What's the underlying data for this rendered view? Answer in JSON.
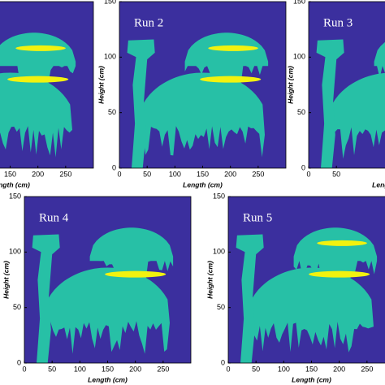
{
  "chart_data": [
    {
      "type": "image",
      "xlabel": "Length (cm)",
      "xlim": [
        0,
        300
      ],
      "ylim": [
        0,
        150
      ],
      "xticks": [
        150,
        200,
        250
      ]
    },
    {
      "type": "image",
      "title": "Run 2",
      "xlabel": "Length (cm)",
      "ylabel": "Height (cm)",
      "xlim": [
        0,
        300
      ],
      "ylim": [
        0,
        150
      ],
      "xticks": [
        0,
        50,
        100,
        150,
        200,
        250
      ],
      "yticks": [
        0,
        50,
        100,
        150
      ]
    },
    {
      "type": "image",
      "title": "Run 3",
      "xlabel": "Length (cm)",
      "ylabel": "Height (cm)",
      "xlim": [
        0,
        300
      ],
      "ylim": [
        0,
        150
      ],
      "xticks": [
        0,
        50
      ],
      "yticks": [
        0,
        50,
        100,
        150
      ]
    },
    {
      "type": "image",
      "title": "Run 4",
      "xlabel": "Length (cm)",
      "ylabel": "Height (cm)",
      "xlim": [
        0,
        300
      ],
      "ylim": [
        0,
        150
      ],
      "xticks": [
        0,
        50,
        100,
        150,
        200,
        250
      ],
      "yticks": [
        0,
        50,
        100,
        150
      ]
    },
    {
      "type": "image",
      "title": "Run 5",
      "xlabel": "Length (cm)",
      "ylabel": "Height (cm)",
      "xlim": [
        0,
        300
      ],
      "ylim": [
        0,
        150
      ],
      "xticks": [
        0,
        50,
        100,
        150,
        200,
        250
      ],
      "yticks": [
        0,
        50,
        100,
        150
      ]
    }
  ]
}
